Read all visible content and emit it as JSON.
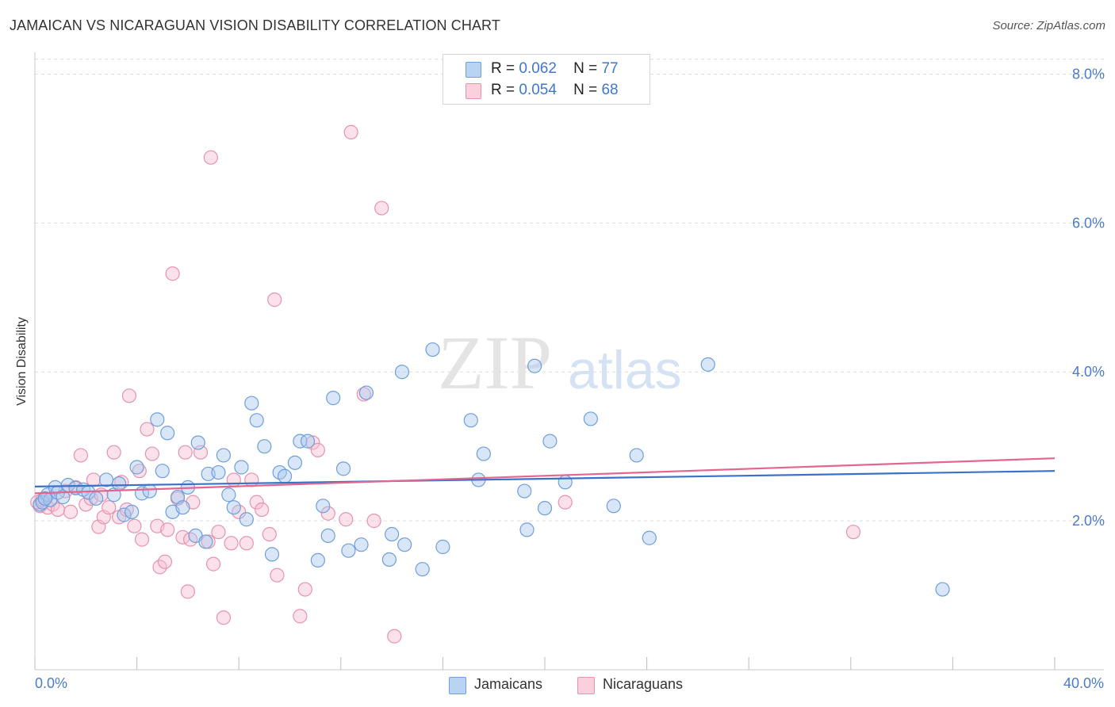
{
  "title": "JAMAICAN VS NICARAGUAN VISION DISABILITY CORRELATION CHART",
  "source": "Source: ZipAtlas.com",
  "watermark": {
    "zip": "ZIP",
    "atlas": "atlas"
  },
  "legend_stats": [
    {
      "r_label": "R =",
      "r_value": "0.062",
      "n_label": "N =",
      "n_value": "77"
    },
    {
      "r_label": "R =",
      "r_value": "0.054",
      "n_label": "N =",
      "n_value": "68"
    }
  ],
  "legend_bottom": [
    "Jamaicans",
    "Nicaraguans"
  ],
  "colors": {
    "jamaican_fill": "#a8c8f0",
    "jamaican_stroke": "#6e9fdc",
    "jamaican_line": "#3a72c8",
    "nicaraguan_fill": "#f7bfd0",
    "nicaraguan_stroke": "#e892ae",
    "nicaraguan_line": "#e2668f",
    "tick_text": "#4a7cc9",
    "grid": "#dddddd"
  },
  "chart_data": {
    "type": "scatter",
    "title": "JAMAICAN VS NICARAGUAN VISION DISABILITY CORRELATION CHART",
    "xlabel": "",
    "ylabel": "Vision Disability",
    "xlim": [
      0,
      40
    ],
    "ylim": [
      0,
      8.25
    ],
    "x_tick_labels": [
      "0.0%",
      "40.0%"
    ],
    "y_ticks": [
      2,
      4,
      6,
      8
    ],
    "y_tick_labels": [
      "2.0%",
      "4.0%",
      "6.0%",
      "8.0%"
    ],
    "grid": "horizontal dashed",
    "legend_position": "top-center",
    "series": [
      {
        "name": "Jamaicans",
        "R": 0.062,
        "N": 77,
        "trend": {
          "x": [
            0,
            40
          ],
          "y": [
            2.46,
            2.67
          ]
        },
        "points": [
          [
            0.2,
            2.22
          ],
          [
            0.3,
            2.25
          ],
          [
            0.5,
            2.35
          ],
          [
            0.6,
            2.28
          ],
          [
            0.8,
            2.45
          ],
          [
            0.9,
            2.38
          ],
          [
            1.1,
            2.32
          ],
          [
            1.3,
            2.48
          ],
          [
            1.6,
            2.44
          ],
          [
            1.9,
            2.42
          ],
          [
            2.1,
            2.38
          ],
          [
            2.4,
            2.3
          ],
          [
            2.8,
            2.55
          ],
          [
            3.1,
            2.35
          ],
          [
            3.3,
            2.5
          ],
          [
            3.5,
            2.08
          ],
          [
            3.8,
            2.12
          ],
          [
            4.0,
            2.72
          ],
          [
            4.2,
            2.37
          ],
          [
            4.5,
            2.4
          ],
          [
            4.8,
            3.36
          ],
          [
            5.0,
            2.67
          ],
          [
            5.2,
            3.18
          ],
          [
            5.4,
            2.12
          ],
          [
            5.6,
            2.32
          ],
          [
            5.8,
            2.18
          ],
          [
            6.0,
            2.45
          ],
          [
            6.3,
            1.8
          ],
          [
            6.4,
            3.05
          ],
          [
            6.7,
            1.72
          ],
          [
            6.8,
            2.63
          ],
          [
            7.2,
            2.65
          ],
          [
            7.4,
            2.88
          ],
          [
            7.6,
            2.35
          ],
          [
            7.8,
            2.18
          ],
          [
            8.1,
            2.72
          ],
          [
            8.3,
            2.02
          ],
          [
            8.5,
            3.58
          ],
          [
            8.7,
            3.35
          ],
          [
            9.0,
            3.0
          ],
          [
            9.3,
            1.55
          ],
          [
            9.6,
            2.65
          ],
          [
            9.8,
            2.6
          ],
          [
            10.2,
            2.78
          ],
          [
            10.4,
            3.07
          ],
          [
            10.7,
            3.07
          ],
          [
            11.1,
            1.47
          ],
          [
            11.3,
            2.2
          ],
          [
            11.5,
            1.8
          ],
          [
            11.7,
            3.65
          ],
          [
            12.1,
            2.7
          ],
          [
            12.3,
            1.6
          ],
          [
            12.8,
            1.68
          ],
          [
            13.0,
            3.72
          ],
          [
            13.9,
            1.48
          ],
          [
            14.0,
            1.82
          ],
          [
            14.4,
            4.0
          ],
          [
            14.5,
            1.68
          ],
          [
            15.2,
            1.35
          ],
          [
            15.6,
            4.3
          ],
          [
            16.0,
            1.65
          ],
          [
            17.1,
            3.35
          ],
          [
            17.4,
            2.55
          ],
          [
            17.6,
            2.9
          ],
          [
            19.2,
            2.4
          ],
          [
            19.3,
            1.88
          ],
          [
            19.6,
            4.08
          ],
          [
            20.0,
            2.17
          ],
          [
            20.2,
            3.07
          ],
          [
            20.8,
            2.52
          ],
          [
            21.8,
            3.37
          ],
          [
            22.7,
            2.2
          ],
          [
            23.6,
            2.88
          ],
          [
            24.1,
            1.77
          ],
          [
            26.4,
            4.1
          ],
          [
            35.6,
            1.08
          ],
          [
            0.4,
            2.3
          ]
        ]
      },
      {
        "name": "Nicaraguans",
        "R": 0.054,
        "N": 68,
        "trend": {
          "x": [
            0,
            40
          ],
          "y": [
            2.37,
            2.84
          ]
        },
        "points": [
          [
            0.2,
            2.2
          ],
          [
            0.4,
            2.3
          ],
          [
            0.5,
            2.18
          ],
          [
            0.7,
            2.22
          ],
          [
            0.9,
            2.15
          ],
          [
            1.2,
            2.4
          ],
          [
            1.4,
            2.12
          ],
          [
            1.6,
            2.45
          ],
          [
            1.8,
            2.88
          ],
          [
            2.0,
            2.22
          ],
          [
            2.2,
            2.3
          ],
          [
            2.3,
            2.55
          ],
          [
            2.5,
            1.92
          ],
          [
            2.6,
            2.35
          ],
          [
            2.7,
            2.05
          ],
          [
            2.9,
            2.18
          ],
          [
            3.1,
            2.92
          ],
          [
            3.3,
            2.05
          ],
          [
            3.4,
            2.52
          ],
          [
            3.6,
            2.15
          ],
          [
            3.7,
            3.68
          ],
          [
            3.9,
            1.93
          ],
          [
            4.1,
            2.67
          ],
          [
            4.2,
            1.75
          ],
          [
            4.4,
            3.23
          ],
          [
            4.6,
            2.9
          ],
          [
            4.8,
            1.93
          ],
          [
            4.9,
            1.38
          ],
          [
            5.1,
            1.45
          ],
          [
            5.2,
            1.88
          ],
          [
            5.4,
            5.32
          ],
          [
            5.6,
            2.3
          ],
          [
            5.8,
            1.78
          ],
          [
            5.9,
            2.92
          ],
          [
            6.0,
            1.05
          ],
          [
            6.1,
            1.75
          ],
          [
            6.2,
            2.25
          ],
          [
            6.5,
            2.92
          ],
          [
            6.8,
            1.72
          ],
          [
            6.9,
            6.88
          ],
          [
            7.0,
            1.42
          ],
          [
            7.2,
            1.85
          ],
          [
            7.4,
            0.7
          ],
          [
            7.7,
            1.7
          ],
          [
            7.8,
            2.55
          ],
          [
            8.0,
            2.12
          ],
          [
            8.3,
            1.7
          ],
          [
            8.5,
            2.55
          ],
          [
            8.7,
            2.25
          ],
          [
            8.9,
            2.15
          ],
          [
            9.2,
            1.82
          ],
          [
            9.4,
            4.97
          ],
          [
            9.5,
            1.27
          ],
          [
            10.4,
            0.72
          ],
          [
            10.6,
            1.08
          ],
          [
            10.9,
            3.05
          ],
          [
            11.1,
            2.95
          ],
          [
            11.5,
            2.1
          ],
          [
            12.2,
            2.02
          ],
          [
            12.4,
            7.22
          ],
          [
            12.9,
            3.7
          ],
          [
            13.3,
            2.0
          ],
          [
            13.6,
            6.2
          ],
          [
            14.1,
            0.45
          ],
          [
            20.8,
            2.25
          ],
          [
            32.1,
            1.85
          ],
          [
            0.1,
            2.25
          ],
          [
            0.3,
            2.28
          ]
        ]
      }
    ]
  }
}
